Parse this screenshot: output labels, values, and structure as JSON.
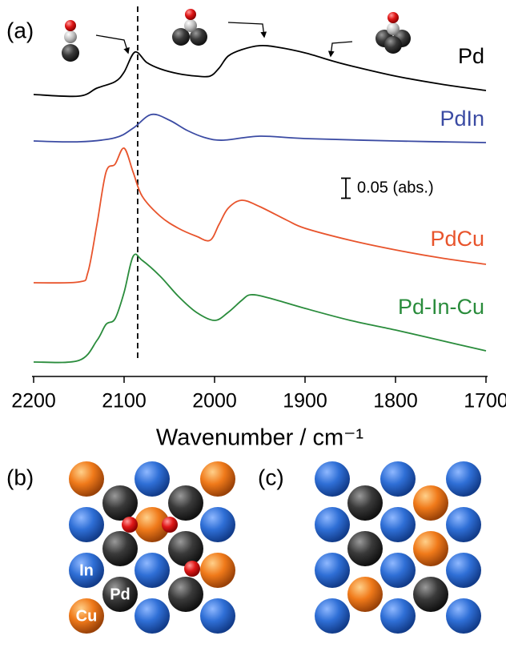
{
  "chart_data": {
    "type": "line",
    "x_label": "Wavenumber / cm⁻¹",
    "xlim": [
      2200,
      1700
    ],
    "xticks": [
      2200,
      2100,
      2000,
      1900,
      1800,
      1700
    ],
    "ylim": [
      0,
      0.94
    ],
    "reference_line": 2085,
    "scale_bar": {
      "value": 0.05,
      "label": "0.05 (abs.)"
    },
    "series": [
      {
        "name": "Pd",
        "color": "#000000",
        "x": [
          2200,
          2150,
          2130,
          2110,
          2100,
          2088,
          2075,
          2060,
          2040,
          2020,
          2005,
          1995,
          1985,
          1970,
          1950,
          1930,
          1900,
          1870,
          1850,
          1800,
          1750,
          1700
        ],
        "values": [
          0.704,
          0.7,
          0.72,
          0.736,
          0.76,
          0.81,
          0.784,
          0.768,
          0.756,
          0.75,
          0.75,
          0.77,
          0.8,
          0.816,
          0.826,
          0.822,
          0.808,
          0.788,
          0.776,
          0.75,
          0.73,
          0.714
        ]
      },
      {
        "name": "PdIn",
        "color": "#3b4ba3",
        "x": [
          2200,
          2150,
          2110,
          2090,
          2070,
          2050,
          2030,
          2010,
          1990,
          1950,
          1900,
          1800,
          1700
        ],
        "values": [
          0.588,
          0.586,
          0.596,
          0.62,
          0.654,
          0.64,
          0.614,
          0.596,
          0.59,
          0.6,
          0.594,
          0.588,
          0.584
        ]
      },
      {
        "name": "PdCu",
        "color": "#e8542c",
        "x": [
          2200,
          2150,
          2140,
          2130,
          2120,
          2110,
          2100,
          2090,
          2080,
          2060,
          2040,
          2020,
          2005,
          1995,
          1985,
          1970,
          1950,
          1920,
          1900,
          1850,
          1800,
          1750,
          1700
        ],
        "values": [
          0.234,
          0.236,
          0.26,
          0.38,
          0.51,
          0.53,
          0.57,
          0.51,
          0.45,
          0.4,
          0.37,
          0.35,
          0.34,
          0.38,
          0.42,
          0.44,
          0.424,
          0.39,
          0.37,
          0.34,
          0.316,
          0.296,
          0.28
        ]
      },
      {
        "name": "Pd-In-Cu",
        "color": "#2a8c3c",
        "x": [
          2200,
          2150,
          2130,
          2120,
          2110,
          2100,
          2090,
          2080,
          2060,
          2040,
          2020,
          2000,
          1985,
          1970,
          1960,
          1940,
          1900,
          1850,
          1800,
          1750,
          1700
        ],
        "values": [
          0.036,
          0.04,
          0.09,
          0.13,
          0.144,
          0.21,
          0.3,
          0.29,
          0.25,
          0.2,
          0.16,
          0.14,
          0.16,
          0.19,
          0.204,
          0.196,
          0.17,
          0.14,
          0.116,
          0.09,
          0.064
        ]
      }
    ]
  },
  "panels": [
    "(a)",
    "(b)",
    "(c)"
  ],
  "atom_labels": [
    "In",
    "Pd",
    "Cu"
  ]
}
